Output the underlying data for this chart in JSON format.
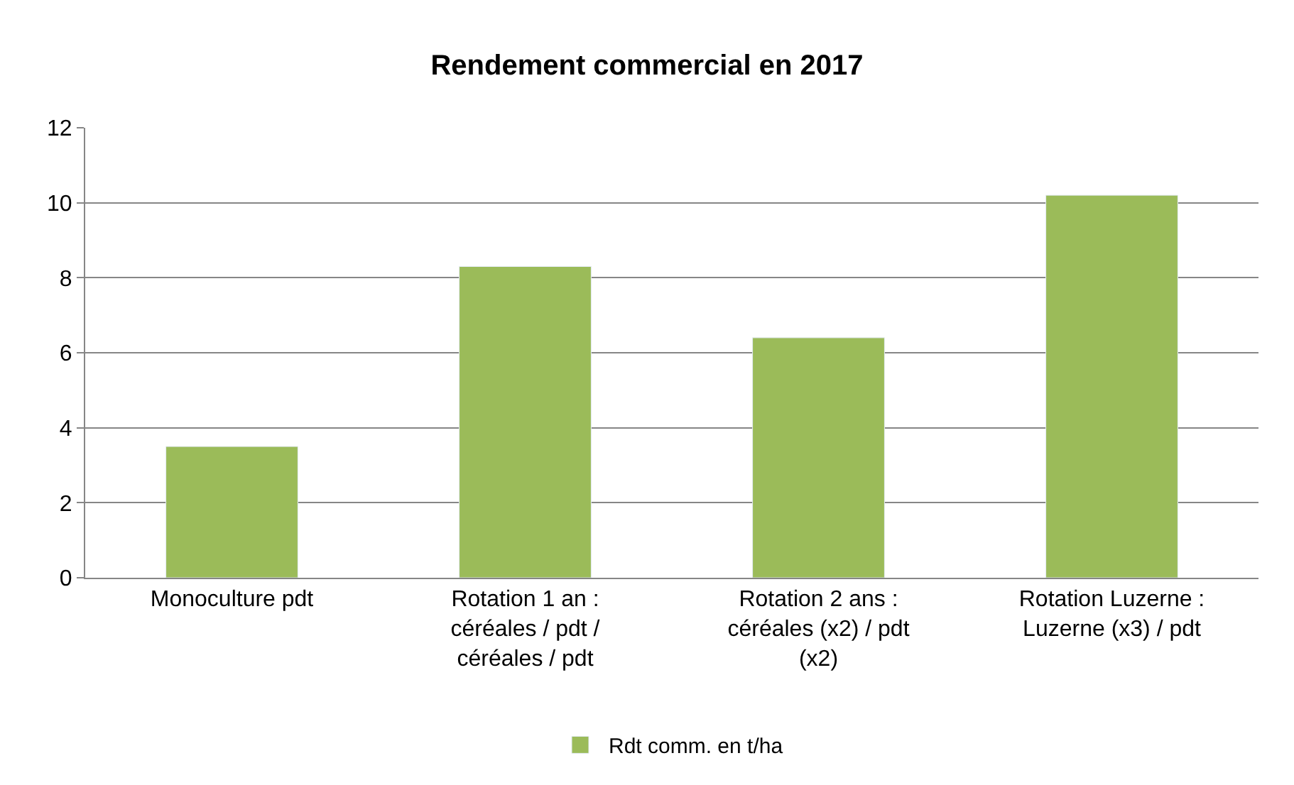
{
  "chart_data": {
    "type": "bar",
    "title": "Rendement commercial en 2017",
    "categories": [
      "Monoculture pdt",
      "Rotation 1 an : céréales / pdt / céréales / pdt",
      "Rotation 2 ans : céréales (x2) / pdt (x2)",
      "Rotation Luzerne : Luzerne (x3) / pdt"
    ],
    "series": [
      {
        "name": "Rdt comm. en t/ha",
        "color": "#9bbb59",
        "values": [
          3.5,
          8.3,
          6.4,
          10.2
        ]
      }
    ],
    "ylim": [
      0,
      12
    ],
    "yticks": [
      0,
      2,
      4,
      6,
      8,
      10,
      12
    ],
    "grid": "y",
    "legend": "bottom"
  }
}
